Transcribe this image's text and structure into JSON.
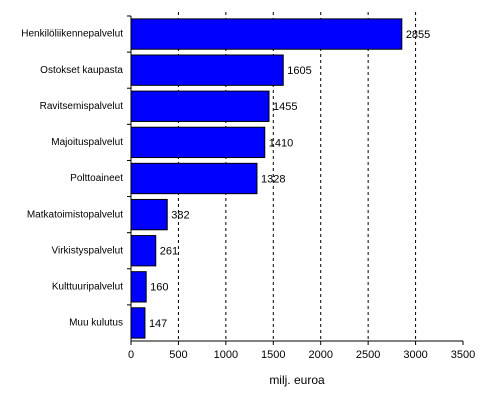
{
  "chart_data": {
    "type": "hbar",
    "categories": [
      "Henkilöliikennepalvelut",
      "Ostokset kaupasta",
      "Ravitsemispalvelut",
      "Majoituspalvelut",
      "Polttoaineet",
      "Matkatoimistopalvelut",
      "Virkistyspalvelut",
      "Kulttuuripalvelut",
      "Muu kulutus"
    ],
    "values": [
      2855,
      1605,
      1455,
      1410,
      1328,
      382,
      261,
      160,
      147
    ],
    "color": "#0000ff",
    "xlabel": "milj. euroa",
    "xlim": [
      0,
      3500
    ],
    "xticks": [
      0,
      500,
      1000,
      1500,
      2000,
      2500,
      3000,
      3500
    ],
    "grid": true
  }
}
